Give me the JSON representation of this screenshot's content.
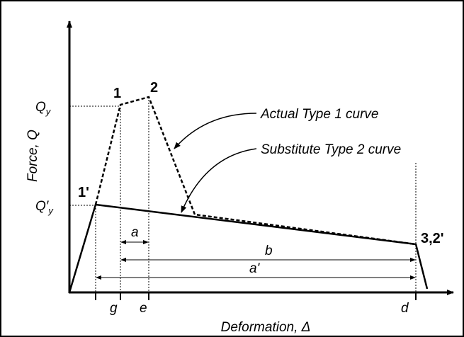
{
  "axes": {
    "y_label": "Force, Q",
    "x_label": "Deformation, Δ"
  },
  "y_markers": [
    {
      "main": "Q",
      "sub": "y"
    },
    {
      "main": "Q′",
      "sub": "y"
    }
  ],
  "points": [
    "1",
    "2",
    "1'",
    "3,2'"
  ],
  "x_markers": [
    "g",
    "e",
    "d"
  ],
  "dimensions": [
    "a",
    "b",
    "a'"
  ],
  "callouts": [
    "Actual Type 1 curve",
    "Substitute Type 2 curve"
  ]
}
